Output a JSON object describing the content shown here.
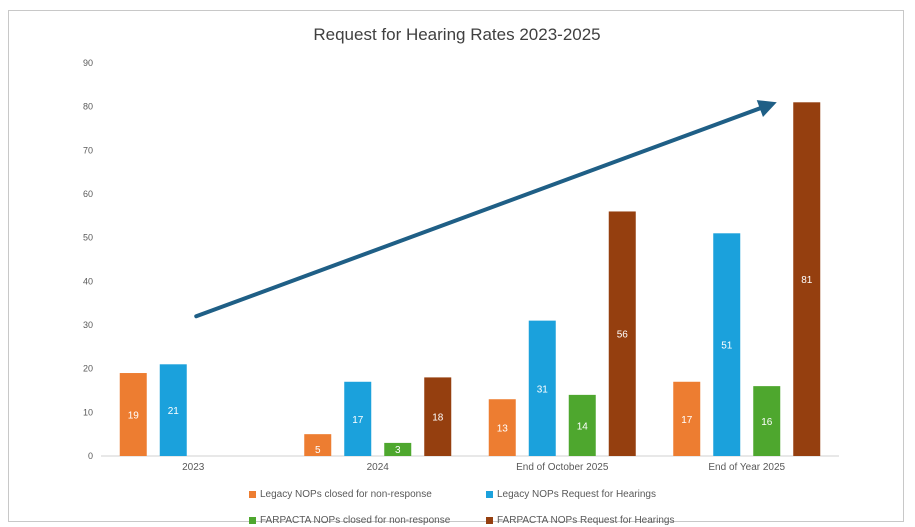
{
  "chart_data": {
    "type": "bar",
    "title": "Request for Hearing Rates 2023-2025",
    "categories": [
      "2023",
      "2024",
      "End of October 2025",
      "End of Year 2025"
    ],
    "ylim": [
      0,
      90
    ],
    "yticks": [
      0,
      10,
      20,
      30,
      40,
      50,
      60,
      70,
      80,
      90
    ],
    "grid": false,
    "legend_position": "bottom",
    "series": [
      {
        "name": "Legacy NOPs closed for non-response",
        "color": "#ed7d31",
        "values": [
          19,
          5,
          13,
          17
        ]
      },
      {
        "name": "Legacy NOPs Request for Hearings",
        "color": "#1ba1dc",
        "values": [
          21,
          17,
          31,
          51
        ]
      },
      {
        "name": "FARPACTA NOPs closed for non-response",
        "color": "#4ea72e",
        "values": [
          null,
          3,
          14,
          16
        ]
      },
      {
        "name": "FARPACTA NOPs Request for Hearings",
        "color": "#953f0f",
        "values": [
          null,
          18,
          56,
          81
        ]
      }
    ],
    "annotations": [
      {
        "type": "trend-arrow",
        "color": "#1f5f86",
        "from": {
          "x": "2023",
          "y": 32
        },
        "to": {
          "x": "End of Year 2025",
          "y": 81
        }
      }
    ]
  }
}
